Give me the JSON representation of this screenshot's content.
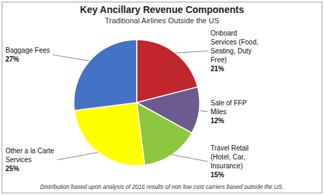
{
  "chart_data": {
    "type": "pie",
    "title": "Key Ancillary Revenue Components",
    "subtitle": "Traditional Airlines Outside the US",
    "annotations": [
      "Distribution based upon analysis of 2016 results of non low cost carriers based outside the US."
    ],
    "categories": [
      "Onboard\nServices (Food,\nSeating, Duty\nFree)",
      "Sale of FFP\nMiles",
      "Travel Retail\n(Hotel, Car,\nInsurance)",
      "Other a la Carte\nServices",
      "Baggage Fees"
    ],
    "values": [
      21,
      12,
      15,
      25,
      27
    ],
    "value_labels": [
      "21%",
      "12%",
      "15%",
      "25%",
      "27%"
    ],
    "data_labels": true,
    "colors": [
      "#c0272d",
      "#6b5b8e",
      "#8dc63f",
      "#ffff00",
      "#4472c4"
    ]
  }
}
